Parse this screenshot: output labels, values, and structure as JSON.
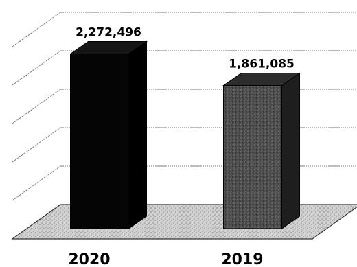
{
  "chart_data": {
    "type": "bar",
    "title": "",
    "xlabel": "",
    "ylabel": "",
    "categories": [
      "2020",
      "2019"
    ],
    "values": [
      2272496,
      1861085
    ],
    "value_labels": [
      "2,272,496",
      "1,861,085"
    ],
    "ylim": [
      0,
      2500000
    ],
    "grid": true,
    "style": "3d",
    "colors": {
      "bar_2020": "#050505",
      "bar_2019": "#3a3a3a",
      "floor": "#bdbdbd",
      "grid": "#7a7a7a"
    }
  }
}
